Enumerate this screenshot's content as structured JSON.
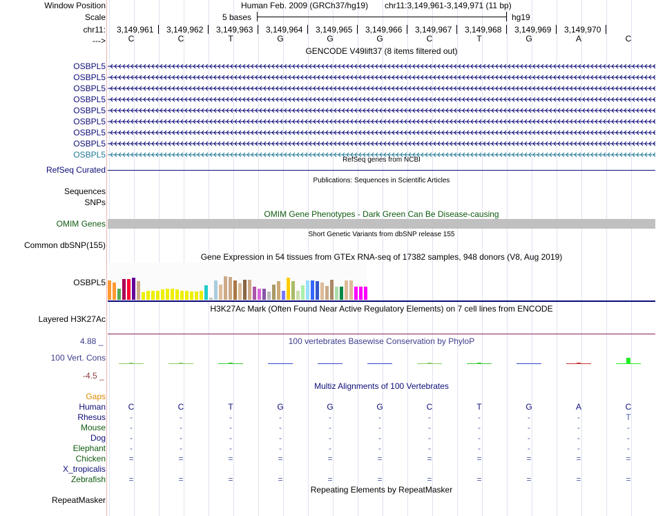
{
  "ruler": {
    "labels": {
      "window_position": "Window Position",
      "scale": "Scale",
      "chrom": "chr11:",
      "strand": "--->"
    },
    "assembly_title": "Human Feb. 2009 (GRCh37/hg19)",
    "position_text": "chr11:3,149,961-3,149,971 (11 bp)",
    "scale_text": "5 bases",
    "scale_db": "hg19",
    "coords": [
      "3,149,961",
      "3,149,962",
      "3,149,963",
      "3,149,964",
      "3,149,965",
      "3,149,966",
      "3,149,967",
      "3,149,968",
      "3,149,969",
      "3,149,970"
    ],
    "bases": [
      "C",
      "C",
      "T",
      "G",
      "G",
      "G",
      "C",
      "T",
      "G",
      "A",
      "C"
    ]
  },
  "gencode": {
    "title": "GENCODE V49lift37 (8 items filtered out)",
    "genes": [
      "OSBPL5",
      "OSBPL5",
      "OSBPL5",
      "OSBPL5",
      "OSBPL5",
      "OSBPL5",
      "OSBPL5",
      "OSBPL5",
      "OSBPL5"
    ],
    "colors": [
      "#0c0c78",
      "#0c0c78",
      "#0c0c78",
      "#0c0c78",
      "#0c0c78",
      "#0c0c78",
      "#0c0c78",
      "#0c0c78",
      "#1e7896"
    ]
  },
  "refseq": {
    "title": "RefSeq genes from NCBI",
    "label": "RefSeq Curated",
    "color": "#0c0c78"
  },
  "publications": {
    "title": "Publications: Sequences in Scientific Articles",
    "label_sequences": "Sequences",
    "label_snps": "SNPs"
  },
  "omim": {
    "title": "OMIM Gene Phenotypes - Dark Green Can Be Disease-causing",
    "label": "OMIM Genes",
    "color": "#0e5a0e"
  },
  "dbsnp": {
    "title": "Short Genetic Variants from dbSNP release 155",
    "label": "Common dbSNP(155)"
  },
  "gtex": {
    "title": "Gene Expression in 54 tissues from GTEx RNA-seq of 17382 samples, 948 donors (V8, Aug 2019)",
    "label": "OSBPL5",
    "values": [
      0.52,
      0.48,
      0.3,
      0.57,
      0.57,
      0.6,
      0.5,
      0.2,
      0.25,
      0.25,
      0.25,
      0.28,
      0.3,
      0.3,
      0.28,
      0.25,
      0.25,
      0.22,
      0.22,
      0.25,
      0.4,
      0.05,
      0.52,
      0.42,
      0.65,
      0.62,
      0.52,
      0.45,
      0.55,
      0.55,
      0.35,
      0.3,
      0.3,
      0.22,
      0.42,
      0.5,
      0.25,
      0.6,
      0.5,
      0.25,
      0.4,
      0.52,
      0.52,
      0.5,
      0.48,
      0.38,
      0.55,
      0.35,
      0.35,
      0.52,
      0.52,
      0.35,
      0.35,
      0.35
    ],
    "colors": [
      "#ff9933",
      "#ff9933",
      "#55aa55",
      "#aa0055",
      "#ff0033",
      "#660099",
      "#ccaa88",
      "#eeee00",
      "#eeee00",
      "#eeee00",
      "#eeee00",
      "#eeee00",
      "#eeee00",
      "#eeee00",
      "#eeee00",
      "#eeee00",
      "#eeee00",
      "#eeee00",
      "#eeee00",
      "#eeee00",
      "#22cccc",
      "#c0c0c0",
      "#aaccdd",
      "#ddbb99",
      "#ccaa88",
      "#ccaa88",
      "#aa7744",
      "#ddbb99",
      "#886644",
      "#ccaa88",
      "#aa55aa",
      "#dd66dd",
      "#8855aa",
      "#bbbbbb",
      "#aa9966",
      "#ccaa77",
      "#7777ff",
      "#ffcc00",
      "#aabb66",
      "#ccddaa",
      "#aaeeaa",
      "#99ddff",
      "#3366ff",
      "#3355cc",
      "#ddbb99",
      "#ccaa88",
      "#aa8866",
      "#aaddaa",
      "#008844",
      "#ddbb99",
      "#ddbb99",
      "#ff00ff",
      "#ff00ff",
      "#ff00ff"
    ]
  },
  "h3k27ac": {
    "title": "H3K27Ac Mark (Often Found Near Active Regulatory Elements) on 7 cell lines from ENCODE",
    "label": "Layered H3K27Ac"
  },
  "conservation": {
    "title": "100 vertebrates Basewise Conservation by PhyloP",
    "label": "100 Vert. Cons",
    "max": "4.88 _",
    "min": "-4.5 _",
    "scores": [
      0.1,
      0.1,
      0.1,
      -0.1,
      -0.1,
      -0.1,
      0.1,
      0.1,
      -0.1,
      0.1,
      1.5
    ],
    "colors": [
      "#88cc66",
      "#88cc66",
      "#33cc33",
      "#3344cc",
      "#3344cc",
      "#3344cc",
      "#88cc66",
      "#33cc33",
      "#3344cc",
      "#cc3333",
      "#22ee22"
    ],
    "title_color": "#3c3c8c",
    "max_color": "#3c3c8c",
    "min_color": "#8c3c3c"
  },
  "multiz": {
    "title": "Multiz Alignments of 100 Vertebrates",
    "gaps_label": "Gaps",
    "species": [
      {
        "name": "Human",
        "color": "#0c0c78",
        "bases": [
          "C",
          "C",
          "T",
          "G",
          "G",
          "G",
          "C",
          "T",
          "G",
          "A",
          "C"
        ]
      },
      {
        "name": "Rhesus",
        "color": "#0c0c78",
        "bases": [
          "-",
          "-",
          "-",
          "-",
          "-",
          "-",
          "-",
          "-",
          "-",
          "-",
          "T"
        ]
      },
      {
        "name": "Mouse",
        "color": "#0e5a0e",
        "bases": [
          "-",
          "-",
          "-",
          "-",
          "-",
          "-",
          "-",
          "-",
          "-",
          "-",
          "-"
        ]
      },
      {
        "name": "Dog",
        "color": "#0c0c78",
        "bases": [
          "-",
          "-",
          "-",
          "-",
          "-",
          "-",
          "-",
          "-",
          "-",
          "-",
          "-"
        ]
      },
      {
        "name": "Elephant",
        "color": "#0e5a0e",
        "bases": [
          "-",
          "-",
          "-",
          "-",
          "-",
          "-",
          "-",
          "-",
          "-",
          "-",
          "-"
        ]
      },
      {
        "name": "Chicken",
        "color": "#0e5a0e",
        "bases": [
          "=",
          "=",
          "=",
          "=",
          "=",
          "=",
          "=",
          "=",
          "=",
          "=",
          "="
        ]
      },
      {
        "name": "X_tropicalis",
        "color": "#0c0c78",
        "bases": [
          "",
          "",
          "",
          "",
          "",
          "",
          "",
          "",
          "",
          "",
          ""
        ]
      },
      {
        "name": "Zebrafish",
        "color": "#0e5a0e",
        "bases": [
          "=",
          "=",
          "=",
          "=",
          "=",
          "=",
          "=",
          "=",
          "=",
          "=",
          "="
        ]
      }
    ]
  },
  "repeatmasker": {
    "title": "Repeating Elements by RepeatMasker",
    "label": "RepeatMasker"
  }
}
